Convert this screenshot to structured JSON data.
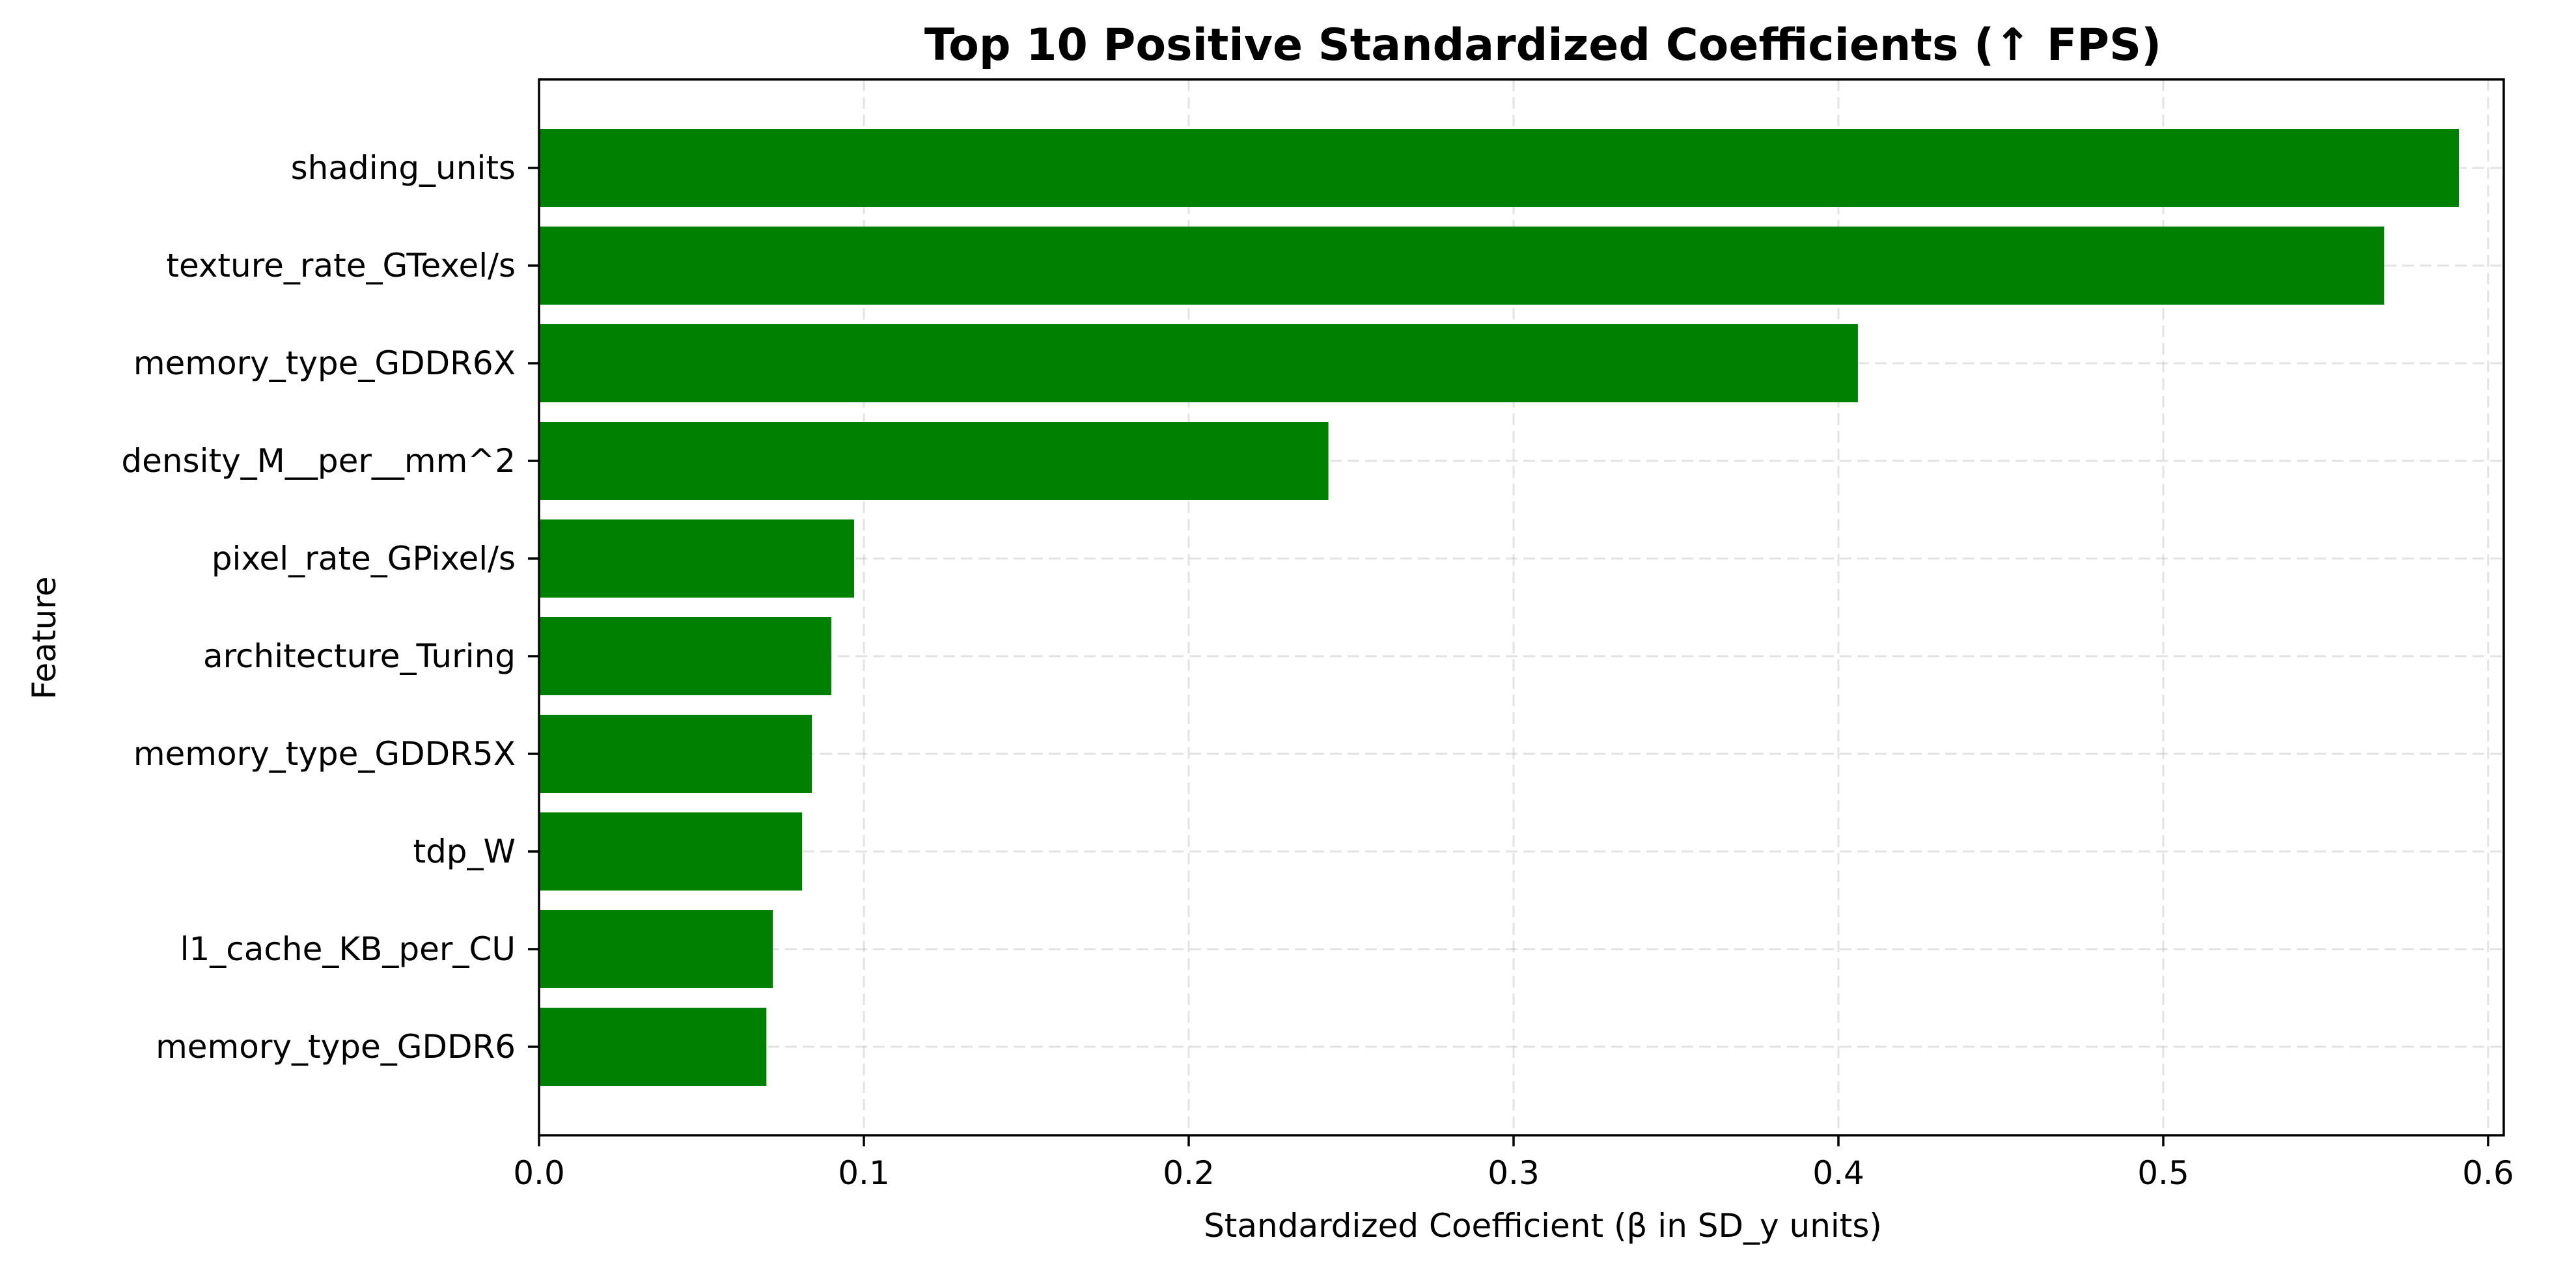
{
  "chart_data": {
    "type": "bar",
    "orientation": "horizontal",
    "title": "Top 10 Positive Standardized Coefficients (↑ FPS)",
    "xlabel": "Standardized Coefficient (β in SD_y units)",
    "ylabel": "Feature",
    "xlim": [
      0,
      0.6
    ],
    "xticks": [
      "0.0",
      "0.1",
      "0.2",
      "0.3",
      "0.4",
      "0.5",
      "0.6"
    ],
    "grid": true,
    "categories": [
      "shading_units",
      "texture_rate_GTexel/s",
      "memory_type_GDDR6X",
      "density_M__per__mm^2",
      "pixel_rate_GPixel/s",
      "architecture_Turing",
      "memory_type_GDDR5X",
      "tdp_W",
      "l1_cache_KB_per_CU",
      "memory_type_GDDR6"
    ],
    "values": [
      0.591,
      0.568,
      0.406,
      0.243,
      0.097,
      0.09,
      0.084,
      0.081,
      0.072,
      0.07
    ],
    "bar_color": "#008000"
  }
}
